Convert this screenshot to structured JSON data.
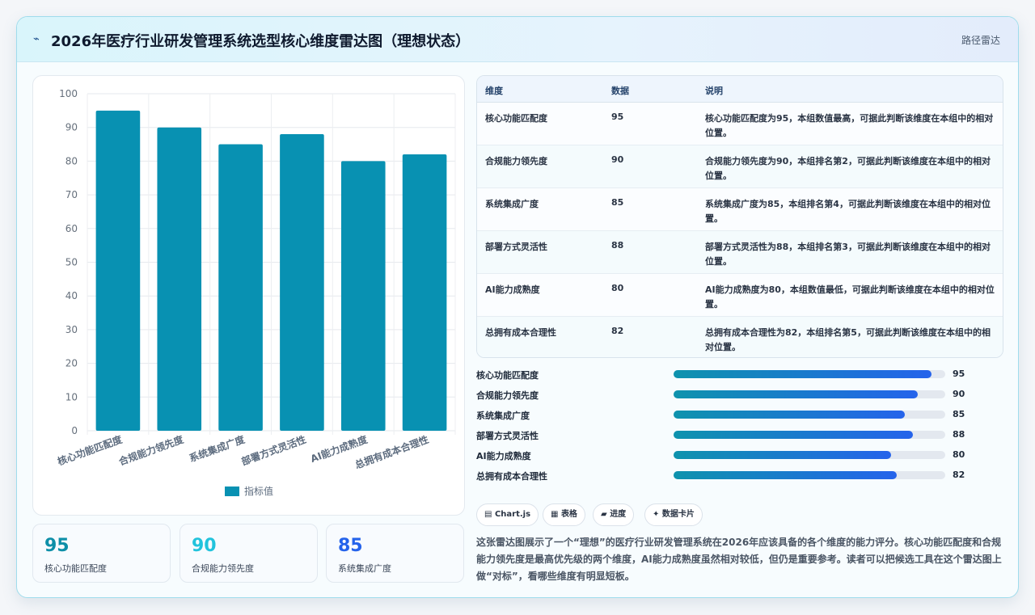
{
  "header": {
    "logo_glyph": "⌁",
    "title": "2026年医疗行业研发管理系统选型核心维度雷达图（理想状态）",
    "route": "路径雷达"
  },
  "chart_data": {
    "type": "bar",
    "categories": [
      "核心功能匹配度",
      "合规能力领先度",
      "系统集成广度",
      "部署方式灵活性",
      "AI能力成熟度",
      "总拥有成本合理性"
    ],
    "series": [
      {
        "name": "指标值",
        "values": [
          95,
          90,
          85,
          88,
          80,
          82
        ],
        "color": "#0891b2"
      }
    ],
    "ylim": [
      0,
      100
    ],
    "yticks": [
      0,
      10,
      20,
      30,
      40,
      50,
      60,
      70,
      80,
      90,
      100
    ],
    "grid": true,
    "legend": "bottom"
  },
  "stats": [
    {
      "value": "95",
      "label": "核心功能匹配度",
      "color": "#0e8fa8"
    },
    {
      "value": "90",
      "label": "合规能力领先度",
      "color": "#22c3dc"
    },
    {
      "value": "85",
      "label": "系统集成广度",
      "color": "#2563eb"
    }
  ],
  "table": {
    "headers": [
      "维度",
      "数据",
      "说明"
    ],
    "rows": [
      {
        "dim": "核心功能匹配度",
        "val": "95",
        "desc": "核心功能匹配度为95，本组数值最高，可据此判断该维度在本组中的相对位置。"
      },
      {
        "dim": "合规能力领先度",
        "val": "90",
        "desc": "合规能力领先度为90，本组排名第2，可据此判断该维度在本组中的相对位置。"
      },
      {
        "dim": "系统集成广度",
        "val": "85",
        "desc": "系统集成广度为85，本组排名第4，可据此判断该维度在本组中的相对位置。"
      },
      {
        "dim": "部署方式灵活性",
        "val": "88",
        "desc": "部署方式灵活性为88，本组排名第3，可据此判断该维度在本组中的相对位置。"
      },
      {
        "dim": "AI能力成熟度",
        "val": "80",
        "desc": "AI能力成熟度为80，本组数值最低，可据此判断该维度在本组中的相对位置。"
      },
      {
        "dim": "总拥有成本合理性",
        "val": "82",
        "desc": "总拥有成本合理性为82，本组排名第5，可据此判断该维度在本组中的相对位置。"
      }
    ]
  },
  "progress": [
    {
      "label": "核心功能匹配度",
      "value": "95",
      "percent": 95
    },
    {
      "label": "合规能力领先度",
      "value": "90",
      "percent": 90
    },
    {
      "label": "系统集成广度",
      "value": "85",
      "percent": 85
    },
    {
      "label": "部署方式灵活性",
      "value": "88",
      "percent": 88
    },
    {
      "label": "AI能力成熟度",
      "value": "80",
      "percent": 80
    },
    {
      "label": "总拥有成本合理性",
      "value": "82",
      "percent": 82
    }
  ],
  "tags": [
    {
      "icon": "▤",
      "label": "Chart.js"
    },
    {
      "icon": "▦",
      "label": "表格"
    },
    {
      "icon": "▰",
      "label": "进度"
    },
    {
      "icon": "✦",
      "label": "数据卡片"
    }
  ],
  "summary": "这张雷达图展示了一个“理想”的医疗行业研发管理系统在2026年应该具备的各个维度的能力评分。核心功能匹配度和合规能力领先度是最高优先级的两个维度，AI能力成熟度虽然相对较低，但仍是重要参考。读者可以把候选工具在这个雷达图上做“对标”，看哪些维度有明显短板。"
}
